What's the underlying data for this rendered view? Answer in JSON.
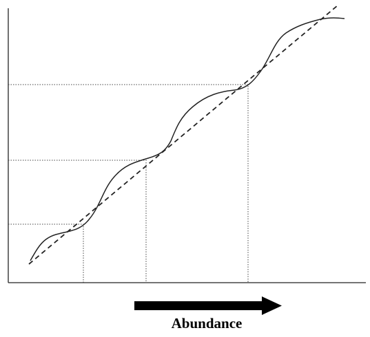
{
  "x_axis_label": "Abundance"
}
